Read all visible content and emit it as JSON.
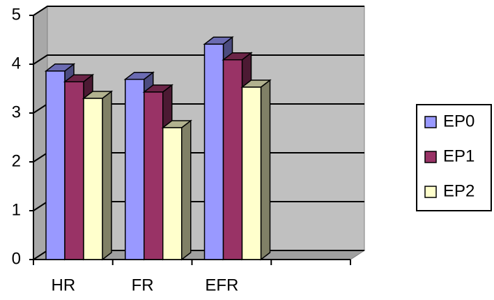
{
  "chart_data": {
    "type": "bar3d",
    "categories": [
      "HR",
      "FR",
      "EFR",
      null
    ],
    "series": [
      {
        "name": "EP0",
        "color": "#9999ff",
        "values": [
          3.86,
          3.69,
          4.41,
          null
        ]
      },
      {
        "name": "EP1",
        "color": "#993366",
        "values": [
          3.64,
          3.43,
          4.09,
          null
        ]
      },
      {
        "name": "EP2",
        "color": "#ffffcc",
        "values": [
          3.3,
          2.7,
          3.53,
          null
        ]
      }
    ],
    "ylim": [
      0,
      5
    ],
    "yticks": [
      0,
      1,
      2,
      3,
      4,
      5
    ],
    "grid": true,
    "wall_color": "#c0c0c0",
    "legend": "right"
  }
}
